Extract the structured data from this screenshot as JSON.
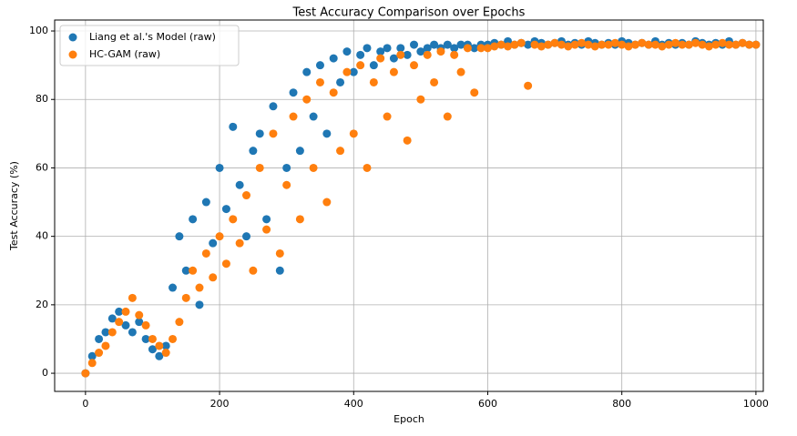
{
  "chart_data": {
    "type": "scatter",
    "title": "Test Accuracy Comparison over Epochs",
    "x_label": "Epoch",
    "y_label": "Test Accuracy (%)",
    "x": [
      0,
      10,
      20,
      30,
      40,
      50,
      60,
      70,
      80,
      90,
      100,
      110,
      120,
      130,
      140,
      150,
      160,
      170,
      180,
      190,
      200,
      210,
      220,
      230,
      240,
      250,
      260,
      270,
      280,
      290,
      300,
      310,
      320,
      330,
      340,
      350,
      360,
      370,
      380,
      390,
      400,
      410,
      420,
      430,
      440,
      450,
      460,
      470,
      480,
      490,
      500,
      510,
      520,
      530,
      540,
      550,
      560,
      570,
      580,
      590,
      600,
      610,
      620,
      630,
      640,
      650,
      660,
      670,
      680,
      690,
      700,
      710,
      720,
      730,
      740,
      750,
      760,
      770,
      780,
      790,
      800,
      810,
      820,
      830,
      840,
      850,
      860,
      870,
      880,
      890,
      900,
      910,
      920,
      930,
      940,
      950,
      960,
      970,
      980,
      990,
      1000
    ],
    "series": [
      {
        "name": "Liang et al.'s Model (raw)",
        "color": "#1f77b4",
        "values": [
          0,
          5,
          10,
          12,
          16,
          18,
          14,
          12,
          15,
          10,
          7,
          5,
          8,
          25,
          40,
          30,
          45,
          20,
          50,
          38,
          60,
          48,
          72,
          55,
          40,
          65,
          70,
          45,
          78,
          30,
          60,
          82,
          65,
          88,
          75,
          90,
          70,
          92,
          85,
          94,
          88,
          93,
          95,
          90,
          94,
          95,
          92,
          95,
          93,
          96,
          94,
          95,
          96,
          95,
          96,
          95,
          96,
          96,
          95,
          96,
          96,
          96.5,
          96,
          97,
          96,
          96.5,
          96,
          97,
          96.5,
          96,
          96.5,
          97,
          96,
          96.5,
          96,
          97,
          96.5,
          96,
          96.5,
          96,
          97,
          96.5,
          96,
          96.5,
          96,
          97,
          96,
          96.5,
          96,
          96.5,
          96,
          97,
          96.5,
          96,
          96.5,
          96,
          97,
          96,
          96.5,
          96,
          96
        ]
      },
      {
        "name": "HC-GAM (raw)",
        "color": "#ff7f0e",
        "values": [
          0,
          3,
          6,
          8,
          12,
          15,
          18,
          22,
          17,
          14,
          10,
          8,
          6,
          10,
          15,
          22,
          30,
          25,
          35,
          28,
          40,
          32,
          45,
          38,
          52,
          30,
          60,
          42,
          70,
          35,
          55,
          75,
          45,
          80,
          60,
          85,
          50,
          82,
          65,
          88,
          70,
          90,
          60,
          85,
          92,
          75,
          88,
          93,
          68,
          90,
          80,
          93,
          85,
          94,
          75,
          93,
          88,
          95,
          82,
          95,
          95,
          95.5,
          96,
          95.5,
          96,
          96.5,
          84,
          96,
          95.5,
          96,
          96.5,
          96,
          95.5,
          96,
          96.5,
          96,
          95.5,
          96,
          96,
          96.5,
          96,
          95.5,
          96,
          96.5,
          96,
          96,
          95.5,
          96,
          96.5,
          96,
          96,
          96.5,
          96,
          95.5,
          96,
          96.5,
          96,
          96,
          96.5,
          96,
          96
        ]
      }
    ],
    "xlim": [
      -46,
      1011
    ],
    "ylim": [
      -5.3,
      103.2
    ],
    "xticks": [
      0,
      200,
      400,
      600,
      800,
      1000
    ],
    "yticks": [
      0,
      20,
      40,
      60,
      80,
      100
    ],
    "grid": true,
    "legend": "upper left"
  }
}
